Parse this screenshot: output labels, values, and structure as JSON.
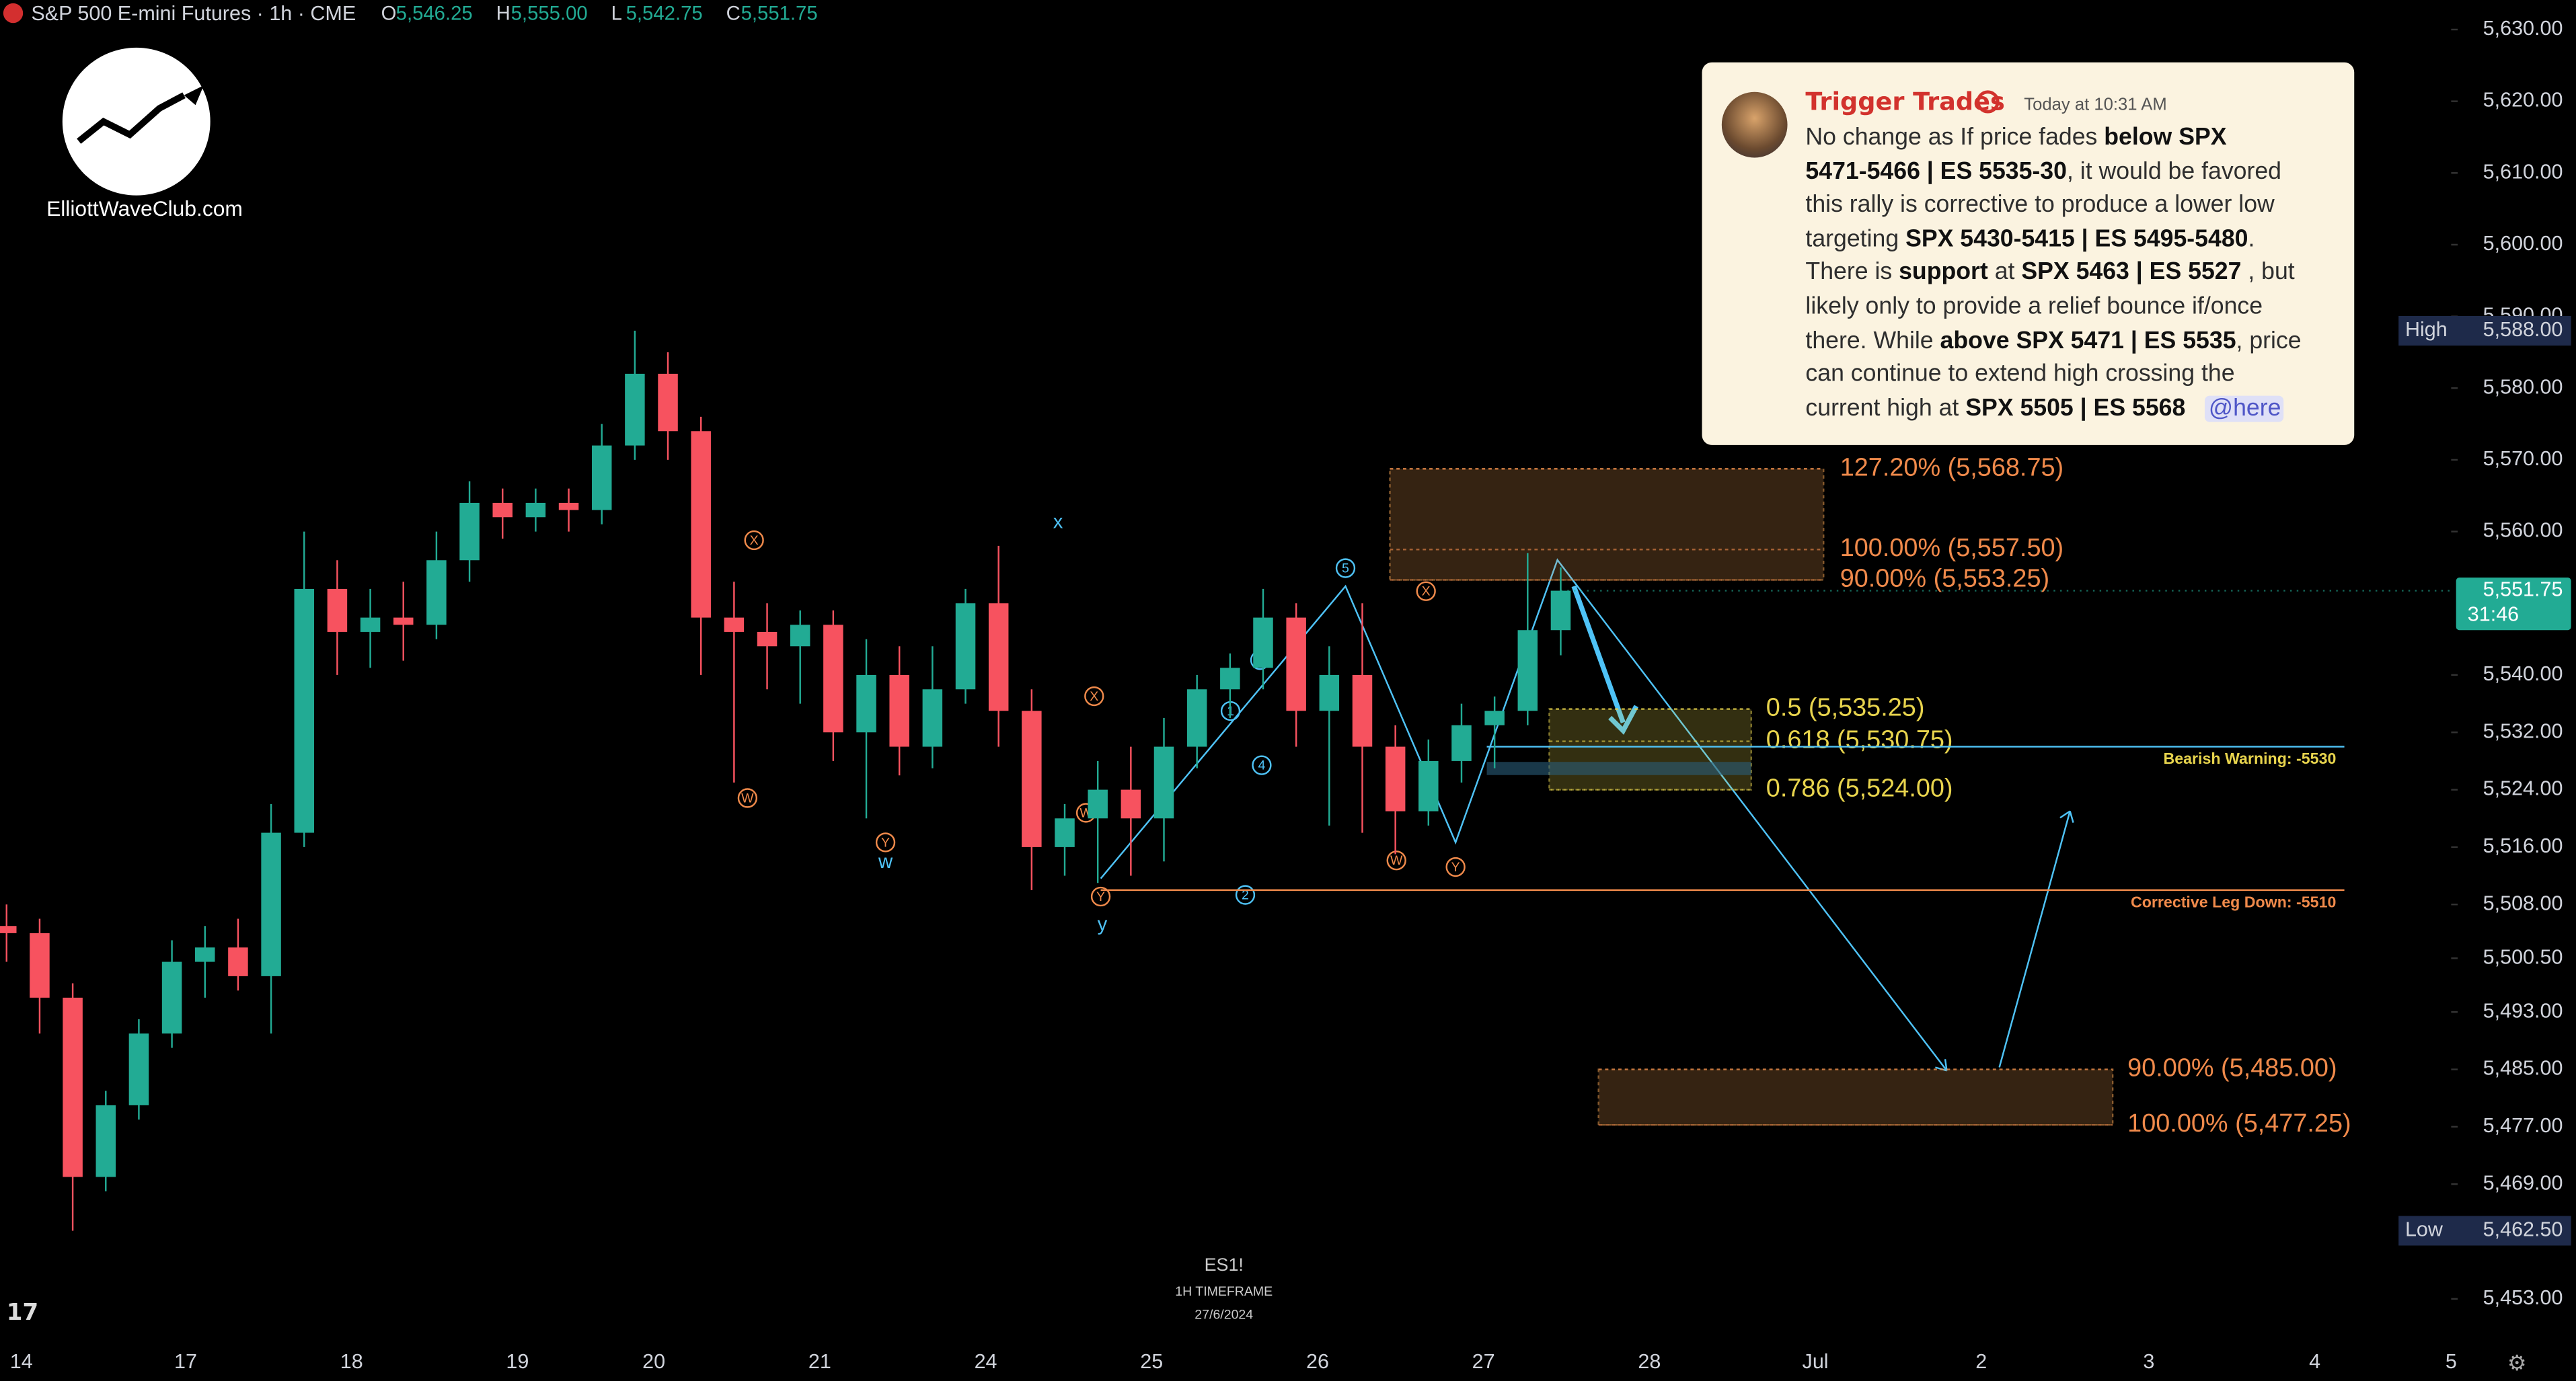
{
  "chart_data": {
    "type": "candlestick",
    "title": "S&P 500 E-mini Futures · 1h · CME",
    "ohlc_header": [
      {
        "key": "O",
        "value": "5,546.25"
      },
      {
        "key": "H",
        "value": "5,555.00"
      },
      {
        "key": "L",
        "value": "5,542.75"
      },
      {
        "key": "C",
        "value": "5,551.75"
      }
    ],
    "up_color": "#22ab94",
    "down_color": "#f7525f",
    "candles": [
      [
        5505,
        5508,
        5500,
        5504
      ],
      [
        5504,
        5506,
        5490,
        5495
      ],
      [
        5495,
        5497,
        5462.5,
        5470
      ],
      [
        5470,
        5482,
        5468,
        5480
      ],
      [
        5480,
        5492,
        5478,
        5490
      ],
      [
        5490,
        5503,
        5488,
        5500
      ],
      [
        5500,
        5505,
        5495,
        5502
      ],
      [
        5502,
        5506,
        5496,
        5498
      ],
      [
        5498,
        5522,
        5490,
        5518
      ],
      [
        5518,
        5560,
        5516,
        5552
      ],
      [
        5552,
        5556,
        5540,
        5546
      ],
      [
        5546,
        5552,
        5541,
        5548
      ],
      [
        5548,
        5553,
        5542,
        5547
      ],
      [
        5547,
        5560,
        5545,
        5556
      ],
      [
        5556,
        5567,
        5553,
        5564
      ],
      [
        5564,
        5566,
        5559,
        5562
      ],
      [
        5562,
        5566,
        5560,
        5564
      ],
      [
        5564,
        5566,
        5560,
        5563
      ],
      [
        5563,
        5575,
        5561,
        5572
      ],
      [
        5572,
        5588,
        5570,
        5582
      ],
      [
        5582,
        5585,
        5570,
        5574
      ],
      [
        5574,
        5576,
        5540,
        5548
      ],
      [
        5548,
        5553,
        5525,
        5546
      ],
      [
        5546,
        5550,
        5538,
        5544
      ],
      [
        5544,
        5549,
        5536,
        5547
      ],
      [
        5547,
        5549,
        5528,
        5532
      ],
      [
        5532,
        5545,
        5520,
        5540
      ],
      [
        5540,
        5544,
        5526,
        5530
      ],
      [
        5530,
        5544,
        5527,
        5538
      ],
      [
        5538,
        5552,
        5536,
        5550
      ],
      [
        5550,
        5558,
        5530,
        5535
      ],
      [
        5535,
        5538,
        5510,
        5516
      ],
      [
        5516,
        5522,
        5512,
        5520
      ],
      [
        5520,
        5528,
        5511,
        5524
      ],
      [
        5524,
        5530,
        5512,
        5520
      ],
      [
        5520,
        5534,
        5514,
        5530
      ],
      [
        5530,
        5540,
        5527,
        5538
      ],
      [
        5538,
        5543,
        5534,
        5541
      ],
      [
        5541,
        5552,
        5538,
        5548
      ],
      [
        5548,
        5550,
        5530,
        5535
      ],
      [
        5535,
        5544,
        5519,
        5540
      ],
      [
        5540,
        5550,
        5518,
        5530
      ],
      [
        5530,
        5533,
        5515,
        5521
      ],
      [
        5521,
        5531,
        5519,
        5528
      ],
      [
        5528,
        5536,
        5525,
        5533
      ],
      [
        5533,
        5537,
        5527,
        5535
      ],
      [
        5535,
        5557,
        5533,
        5546.25
      ],
      [
        5546.25,
        5555,
        5542.75,
        5551.75
      ]
    ],
    "x_labels": [
      "14",
      "17",
      "18",
      "19",
      "20",
      "21",
      "24",
      "25",
      "26",
      "27",
      "28",
      "Jul",
      "2",
      "3",
      "4",
      "5"
    ],
    "ylim": [
      5453,
      5630
    ],
    "yticks": [
      {
        "value": 5630,
        "label": "5,630.00"
      },
      {
        "value": 5620,
        "label": "5,620.00"
      },
      {
        "value": 5610,
        "label": "5,610.00"
      },
      {
        "value": 5600,
        "label": "5,600.00"
      },
      {
        "value": 5590,
        "label": "5,590.00"
      },
      {
        "value": 5580,
        "label": "5,580.00"
      },
      {
        "value": 5570,
        "label": "5,570.00"
      },
      {
        "value": 5560,
        "label": "5,560.00"
      },
      {
        "value": 5540,
        "label": "5,540.00"
      },
      {
        "value": 5532,
        "label": "5,532.00"
      },
      {
        "value": 5524,
        "label": "5,524.00"
      },
      {
        "value": 5516,
        "label": "5,516.00"
      },
      {
        "value": 5508,
        "label": "5,508.00"
      },
      {
        "value": 5500.5,
        "label": "5,500.50"
      },
      {
        "value": 5493,
        "label": "5,493.00"
      },
      {
        "value": 5485,
        "label": "5,485.00"
      },
      {
        "value": 5477,
        "label": "5,477.00"
      },
      {
        "value": 5469,
        "label": "5,469.00"
      },
      {
        "value": 5453,
        "label": "5,453.00"
      }
    ],
    "high": {
      "name": "High",
      "value": 5588,
      "label": "5,588.00"
    },
    "low": {
      "name": "Low",
      "value": 5462.5,
      "label": "5,462.50"
    },
    "last": {
      "value": 5551.75,
      "label": "5,551.75",
      "countdown": "31:46"
    },
    "levels": [
      {
        "label": "127.20% (5,568.75)",
        "value": 5568.75
      },
      {
        "label": "100.00% (5,557.50)",
        "value": 5557.5
      },
      {
        "label": "90.00% (5,553.25)",
        "value": 5553.25
      },
      {
        "label": "0.5 (5,535.25)",
        "value": 5535.25
      },
      {
        "label": "0.618 (5,530.75)",
        "value": 5530.75
      },
      {
        "label": "0.786 (5,524.00)",
        "value": 5524
      },
      {
        "label": "90.00% (5,485.00)",
        "value": 5485
      },
      {
        "label": "100.00% (5,477.25)",
        "value": 5477.25
      }
    ],
    "hlines": [
      {
        "label": "Bearish Warning: -5530",
        "value": 5530,
        "color": "#e8d44d"
      },
      {
        "label": "Corrective Leg Down: -5510",
        "value": 5510,
        "color": "#f08a4b"
      }
    ],
    "wave_labels": [
      "X",
      "X",
      "W",
      "Y",
      "W",
      "Y",
      "X",
      "W",
      "Y",
      "5",
      "3",
      "1",
      "4",
      "2",
      "x",
      "w",
      "y"
    ],
    "watermark": [
      "ES1!",
      "1H TIMEFRAME",
      "27/6/2024"
    ],
    "logo": "ElliottWaveClub.com"
  },
  "message": {
    "author": "Trigger Trades",
    "time": "Today at 10:31 AM",
    "lines": [
      [
        {
          "text": "No change as If price fades "
        },
        {
          "text": "below SPX",
          "bold": true
        }
      ],
      [
        {
          "text": "5471-5466 | ES 5535-30",
          "bold": true
        },
        {
          "text": ", it would be favored"
        }
      ],
      [
        {
          "text": "this rally is corrective to produce a lower low"
        }
      ],
      [
        {
          "text": "targeting "
        },
        {
          "text": "SPX 5430-5415 | ES 5495-5480",
          "bold": true
        },
        {
          "text": "."
        }
      ],
      [
        {
          "text": "There is "
        },
        {
          "text": "support",
          "bold": true
        },
        {
          "text": " at "
        },
        {
          "text": "SPX 5463 | ES 5527",
          "bold": true
        },
        {
          "text": " , but"
        }
      ],
      [
        {
          "text": "likely only to provide a relief bounce if/once"
        }
      ],
      [
        {
          "text": "there. While "
        },
        {
          "text": "above SPX 5471 | ES 5535",
          "bold": true
        },
        {
          "text": ", price"
        }
      ],
      [
        {
          "text": "can continue to extend high crossing the"
        }
      ],
      [
        {
          "text": "current high at "
        },
        {
          "text": "SPX 5505 | ES 5568",
          "bold": true
        },
        {
          "text": "   "
        },
        {
          "text": "@here",
          "mention": true
        }
      ]
    ]
  }
}
